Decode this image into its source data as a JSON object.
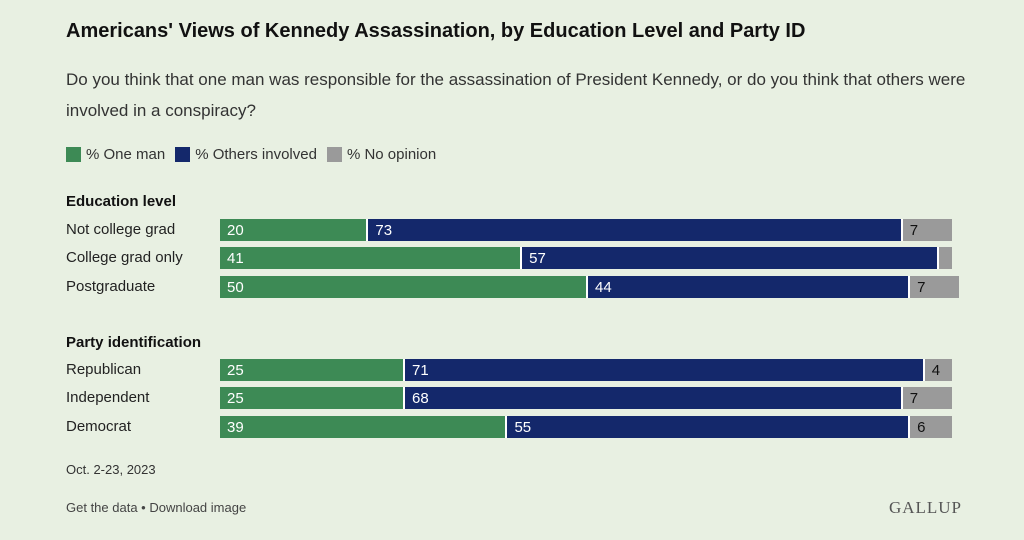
{
  "title": "Americans' Views of Kennedy Assassination, by Education Level and Party ID",
  "subtitle": "Do you think that one man was responsible for the assassination of President Kennedy, or do you think that others were involved in a conspiracy?",
  "colors": {
    "one_man": "#3d8a55",
    "others": "#14286b",
    "no_opinion": "#9a9a9a"
  },
  "chart_data": {
    "type": "bar",
    "orientation": "horizontal",
    "stacked": true,
    "series": [
      {
        "name": "% One man",
        "color": "#3d8a55"
      },
      {
        "name": "% Others involved",
        "color": "#14286b"
      },
      {
        "name": "% No opinion",
        "color": "#9a9a9a"
      }
    ],
    "groups": [
      {
        "heading": "Education level",
        "rows": [
          {
            "label": "Not college grad",
            "values": [
              20,
              73,
              7
            ]
          },
          {
            "label": "College grad only",
            "values": [
              41,
              57,
              2
            ],
            "hide_label": [
              false,
              false,
              true
            ]
          },
          {
            "label": "Postgraduate",
            "values": [
              50,
              44,
              7
            ]
          }
        ]
      },
      {
        "heading": "Party identification",
        "rows": [
          {
            "label": "Republican",
            "values": [
              25,
              71,
              4
            ]
          },
          {
            "label": "Independent",
            "values": [
              25,
              68,
              7
            ]
          },
          {
            "label": "Democrat",
            "values": [
              39,
              55,
              6
            ]
          }
        ]
      }
    ],
    "legend_position": "top-left"
  },
  "footnote": "Oct. 2-23, 2023",
  "links": {
    "get_data": "Get the data",
    "separator": " • ",
    "download": "Download image"
  },
  "brand": "GALLUP"
}
